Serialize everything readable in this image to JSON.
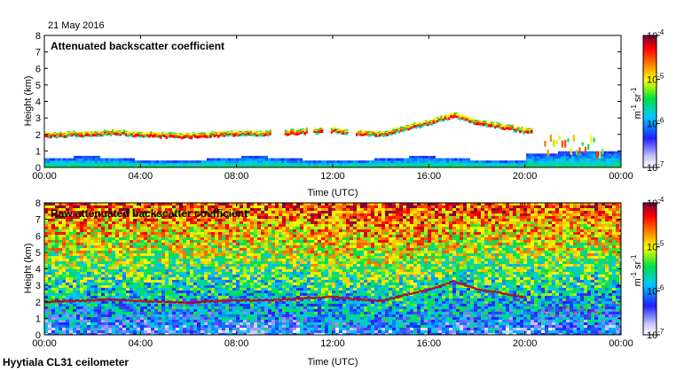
{
  "date": "21 May 2016",
  "footer": "Hyytiala CL31 ceilometer",
  "chart_data": [
    {
      "type": "heatmap",
      "title": "Attenuated backscatter coefficient",
      "xlabel": "Time (UTC)",
      "ylabel": "Height (km)",
      "x_ticks": [
        "00:00",
        "04:00",
        "08:00",
        "12:00",
        "16:00",
        "20:00",
        "00:00"
      ],
      "y_ticks": [
        "0",
        "1",
        "2",
        "3",
        "4",
        "5",
        "6",
        "7",
        "8"
      ],
      "xlim_hours": [
        0,
        24
      ],
      "ylim_km": [
        0,
        8
      ],
      "colorbar": {
        "scale": "log",
        "range": [
          1e-07,
          0.0001
        ],
        "tick_labels": [
          "10",
          "10",
          "10",
          "10"
        ],
        "tick_exponents": [
          "-7",
          "-6",
          "-5",
          "-4"
        ],
        "unit": "m",
        "unit_exp1": "-1",
        "unit_mid": " sr",
        "unit_exp2": "-1"
      },
      "cloud_layer_km": [
        {
          "t": 0.0,
          "h": 2.05
        },
        {
          "t": 1.0,
          "h": 2.1
        },
        {
          "t": 2.0,
          "h": 2.15
        },
        {
          "t": 3.0,
          "h": 2.2
        },
        {
          "t": 4.0,
          "h": 2.1
        },
        {
          "t": 5.0,
          "h": 2.05
        },
        {
          "t": 6.0,
          "h": 2.0
        },
        {
          "t": 7.0,
          "h": 2.1
        },
        {
          "t": 8.0,
          "h": 2.15
        },
        {
          "t": 9.0,
          "h": 2.15
        },
        {
          "t": 10.0,
          "h": 2.2
        },
        {
          "t": 11.0,
          "h": 2.3
        },
        {
          "t": 12.0,
          "h": 2.35
        },
        {
          "t": 13.0,
          "h": 2.2
        },
        {
          "t": 14.0,
          "h": 2.1
        },
        {
          "t": 15.0,
          "h": 2.5
        },
        {
          "t": 16.0,
          "h": 2.8
        },
        {
          "t": 17.0,
          "h": 3.3
        },
        {
          "t": 18.0,
          "h": 2.8
        },
        {
          "t": 19.0,
          "h": 2.6
        },
        {
          "t": 20.0,
          "h": 2.3
        }
      ]
    },
    {
      "type": "heatmap",
      "title": "Raw attenuated backscatter coefficient",
      "xlabel": "Time (UTC)",
      "ylabel": "Height (km)",
      "x_ticks": [
        "00:00",
        "04:00",
        "08:00",
        "12:00",
        "16:00",
        "20:00",
        "00:00"
      ],
      "y_ticks": [
        "0",
        "1",
        "2",
        "3",
        "4",
        "5",
        "6",
        "7",
        "8"
      ],
      "xlim_hours": [
        0,
        24
      ],
      "ylim_km": [
        0,
        8
      ],
      "colorbar": {
        "scale": "log",
        "range": [
          1e-07,
          0.0001
        ],
        "tick_labels": [
          "10",
          "10",
          "10",
          "10"
        ],
        "tick_exponents": [
          "-7",
          "-6",
          "-5",
          "-4"
        ],
        "unit": "m",
        "unit_exp1": "-1",
        "unit_mid": " sr",
        "unit_exp2": "-1"
      }
    }
  ]
}
